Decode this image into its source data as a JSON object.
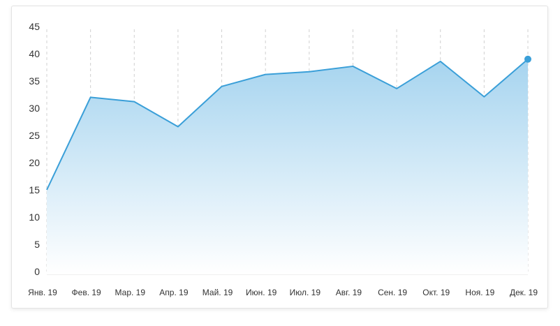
{
  "chart_data": {
    "type": "area",
    "categories": [
      "Янв. 19",
      "Фев. 19",
      "Мар. 19",
      "Апр. 19",
      "Май. 19",
      "Июн. 19",
      "Июл. 19",
      "Авг. 19",
      "Сен. 19",
      "Окт. 19",
      "Ноя. 19",
      "Дек. 19"
    ],
    "series": [
      {
        "values": [
          15,
          32,
          31.2,
          26.6,
          34,
          36.2,
          36.7,
          37.7,
          33.6,
          38.6,
          32.1,
          39
        ]
      }
    ],
    "ylim": [
      0,
      45
    ],
    "yticks": [
      0,
      5,
      10,
      15,
      20,
      25,
      30,
      35,
      40,
      45
    ],
    "title": "",
    "xlabel": "",
    "ylabel": "",
    "grid": "vertical dashed",
    "legend": "none",
    "colors": {
      "line": "#3a9fd8",
      "fill_top": "#a6d4ef",
      "fill_bottom": "#ffffff",
      "grid": "#d0d0d0",
      "marker": "#3a9fd8"
    }
  }
}
